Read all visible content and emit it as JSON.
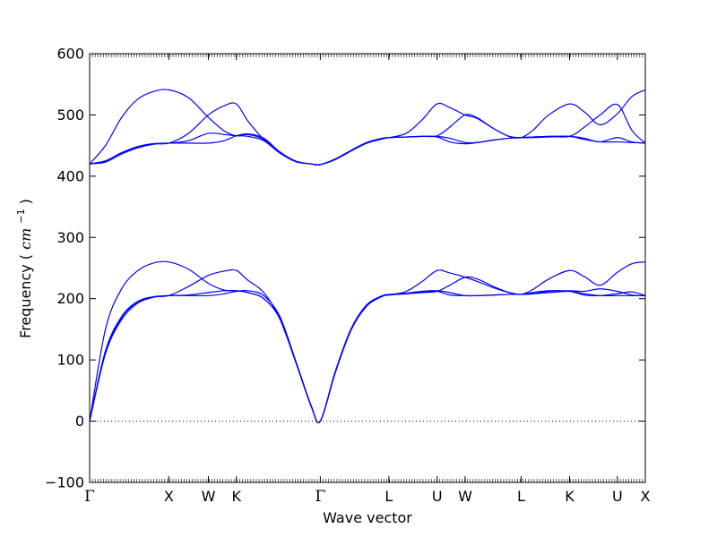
{
  "chart_data": {
    "type": "line",
    "title": "",
    "xlabel": "Wave vector",
    "ylabel": "Frequency",
    "ylabel_unit": "cm",
    "ylabel_unit_exp": "−1",
    "ylim": [
      -100,
      600
    ],
    "yticks": [
      -100,
      0,
      100,
      200,
      300,
      400,
      500,
      600
    ],
    "zero_line": "dotted",
    "grid": false,
    "legend": "none",
    "line_color": "#0000ff",
    "xticks": [
      {
        "label": "Γ",
        "x": 0.0
      },
      {
        "label": "X",
        "x": 1.0
      },
      {
        "label": "W",
        "x": 1.5
      },
      {
        "label": "K",
        "x": 1.854
      },
      {
        "label": "Γ",
        "x": 2.914
      },
      {
        "label": "L",
        "x": 3.78
      },
      {
        "label": "U",
        "x": 4.39
      },
      {
        "label": "W",
        "x": 4.744
      },
      {
        "label": "L",
        "x": 5.451
      },
      {
        "label": "K",
        "x": 6.063
      },
      {
        "label": "U",
        "x": 6.667
      },
      {
        "label": "X",
        "x": 7.02
      }
    ],
    "series": [
      {
        "x": [
          0.0,
          0.2,
          0.4,
          0.6,
          0.8,
          1.0,
          1.25,
          1.5,
          1.7,
          1.854,
          2.0,
          2.2,
          2.4,
          2.6,
          2.8,
          2.914,
          3.1,
          3.3,
          3.5,
          3.7,
          3.78,
          4.0,
          4.2,
          4.39,
          4.55,
          4.744,
          4.9,
          5.1,
          5.3,
          5.451,
          5.6,
          5.8,
          6.063,
          6.25,
          6.45,
          6.667,
          6.85,
          7.02
        ],
        "y": [
          0,
          115,
          170,
          195,
          203,
          205,
          205,
          205,
          208,
          212,
          213,
          205,
          172,
          100,
          25,
          0,
          80,
          150,
          190,
          205,
          207,
          209,
          211,
          212,
          206,
          205,
          205,
          206,
          207,
          207,
          208,
          210,
          212,
          208,
          205,
          205,
          205,
          205
        ]
      },
      {
        "x": [
          0.0,
          0.2,
          0.4,
          0.6,
          0.8,
          1.0,
          1.25,
          1.5,
          1.7,
          1.854,
          2.0,
          2.2,
          2.4,
          2.6,
          2.8,
          2.914,
          3.1,
          3.3,
          3.5,
          3.7,
          3.78,
          4.0,
          4.2,
          4.39,
          4.55,
          4.744,
          4.9,
          5.1,
          5.3,
          5.451,
          5.6,
          5.8,
          6.063,
          6.25,
          6.45,
          6.667,
          6.85,
          7.02
        ],
        "y": [
          0,
          110,
          165,
          192,
          202,
          205,
          206,
          210,
          213,
          213,
          210,
          200,
          168,
          98,
          24,
          0,
          78,
          148,
          188,
          204,
          206,
          208,
          210,
          212,
          222,
          235,
          232,
          220,
          210,
          207,
          210,
          213,
          212,
          206,
          205,
          208,
          211,
          205
        ]
      },
      {
        "x": [
          0.0,
          0.2,
          0.4,
          0.6,
          0.8,
          1.0,
          1.25,
          1.5,
          1.7,
          1.854,
          2.0,
          2.2,
          2.4,
          2.6,
          2.8,
          2.914,
          3.1,
          3.3,
          3.5,
          3.7,
          3.78,
          4.0,
          4.2,
          4.39,
          4.55,
          4.744,
          4.9,
          5.1,
          5.3,
          5.451,
          5.6,
          5.8,
          6.063,
          6.25,
          6.45,
          6.667,
          6.85,
          7.02
        ],
        "y": [
          0,
          150,
          215,
          245,
          258,
          260,
          248,
          225,
          214,
          213,
          210,
          200,
          168,
          98,
          24,
          0,
          78,
          148,
          188,
          204,
          206,
          212,
          228,
          246,
          242,
          235,
          228,
          218,
          210,
          207,
          215,
          232,
          246,
          236,
          222,
          243,
          257,
          260
        ]
      },
      {
        "x": [
          0.0,
          0.2,
          0.4,
          0.6,
          0.8,
          1.0,
          1.25,
          1.5,
          1.7,
          1.854,
          2.0,
          2.2,
          2.4,
          2.6,
          2.8,
          2.914,
          3.1,
          3.3,
          3.5,
          3.7,
          3.78,
          4.0,
          4.2,
          4.39,
          4.55,
          4.744,
          4.9,
          5.1,
          5.3,
          5.451,
          5.6,
          5.8,
          6.063,
          6.25,
          6.45,
          6.667,
          6.85,
          7.02
        ],
        "y": [
          0,
          112,
          168,
          194,
          203,
          205,
          220,
          238,
          245,
          246,
          230,
          210,
          168,
          98,
          24,
          0,
          78,
          148,
          188,
          204,
          206,
          209,
          212,
          213,
          210,
          205,
          205,
          206,
          207,
          207,
          208,
          212,
          213,
          212,
          216,
          212,
          206,
          205
        ]
      },
      {
        "x": [
          0.0,
          0.2,
          0.4,
          0.6,
          0.8,
          1.0,
          1.25,
          1.5,
          1.7,
          1.854,
          2.0,
          2.2,
          2.4,
          2.6,
          2.8,
          2.914,
          3.1,
          3.3,
          3.5,
          3.7,
          3.78,
          4.0,
          4.2,
          4.39,
          4.55,
          4.744,
          4.9,
          5.1,
          5.3,
          5.451,
          5.6,
          5.8,
          6.063,
          6.25,
          6.45,
          6.667,
          6.85,
          7.02
        ],
        "y": [
          420,
          425,
          438,
          448,
          453,
          454,
          454,
          454,
          458,
          466,
          469,
          462,
          440,
          425,
          420,
          419,
          428,
          442,
          455,
          462,
          463,
          464,
          465,
          464,
          456,
          453,
          455,
          459,
          462,
          463,
          464,
          465,
          465,
          460,
          456,
          456,
          455,
          454
        ]
      },
      {
        "x": [
          0.0,
          0.2,
          0.4,
          0.6,
          0.8,
          1.0,
          1.25,
          1.5,
          1.7,
          1.854,
          2.0,
          2.2,
          2.4,
          2.6,
          2.8,
          2.914,
          3.1,
          3.3,
          3.5,
          3.7,
          3.78,
          4.0,
          4.2,
          4.39,
          4.55,
          4.744,
          4.9,
          5.1,
          5.3,
          5.451,
          5.6,
          5.8,
          6.063,
          6.25,
          6.45,
          6.667,
          6.85,
          7.02
        ],
        "y": [
          420,
          423,
          436,
          446,
          452,
          454,
          458,
          470,
          468,
          466,
          465,
          458,
          438,
          424,
          420,
          419,
          427,
          441,
          454,
          461,
          463,
          464,
          465,
          466,
          480,
          500,
          495,
          478,
          465,
          463,
          463,
          464,
          465,
          462,
          456,
          463,
          456,
          454
        ]
      },
      {
        "x": [
          0.0,
          0.2,
          0.4,
          0.6,
          0.8,
          1.0,
          1.25,
          1.5,
          1.7,
          1.854,
          2.0,
          2.2,
          2.4,
          2.6,
          2.8,
          2.914,
          3.1,
          3.3,
          3.5,
          3.7,
          3.78,
          4.0,
          4.2,
          4.39,
          4.55,
          4.744,
          4.9,
          5.1,
          5.3,
          5.451,
          5.6,
          5.8,
          6.063,
          6.25,
          6.45,
          6.667,
          6.85,
          7.02
        ],
        "y": [
          420,
          450,
          495,
          525,
          538,
          541,
          528,
          496,
          474,
          466,
          468,
          460,
          439,
          424,
          420,
          419,
          427,
          441,
          454,
          461,
          463,
          470,
          492,
          518,
          512,
          500,
          494,
          478,
          465,
          463,
          475,
          500,
          518,
          505,
          484,
          502,
          530,
          541
        ]
      },
      {
        "x": [
          0.0,
          0.2,
          0.4,
          0.6,
          0.8,
          1.0,
          1.25,
          1.5,
          1.7,
          1.854,
          2.0,
          2.2,
          2.4,
          2.6,
          2.8,
          2.914,
          3.1,
          3.3,
          3.5,
          3.7,
          3.78,
          4.0,
          4.2,
          4.39,
          4.55,
          4.744,
          4.9,
          5.1,
          5.3,
          5.451,
          5.6,
          5.8,
          6.063,
          6.25,
          6.45,
          6.667,
          6.85,
          7.02
        ],
        "y": [
          420,
          425,
          438,
          448,
          453,
          454,
          470,
          500,
          515,
          518,
          490,
          460,
          439,
          424,
          420,
          419,
          427,
          441,
          454,
          461,
          463,
          464,
          465,
          465,
          462,
          455,
          455,
          459,
          462,
          463,
          464,
          465,
          465,
          480,
          500,
          517,
          475,
          454
        ]
      }
    ]
  }
}
